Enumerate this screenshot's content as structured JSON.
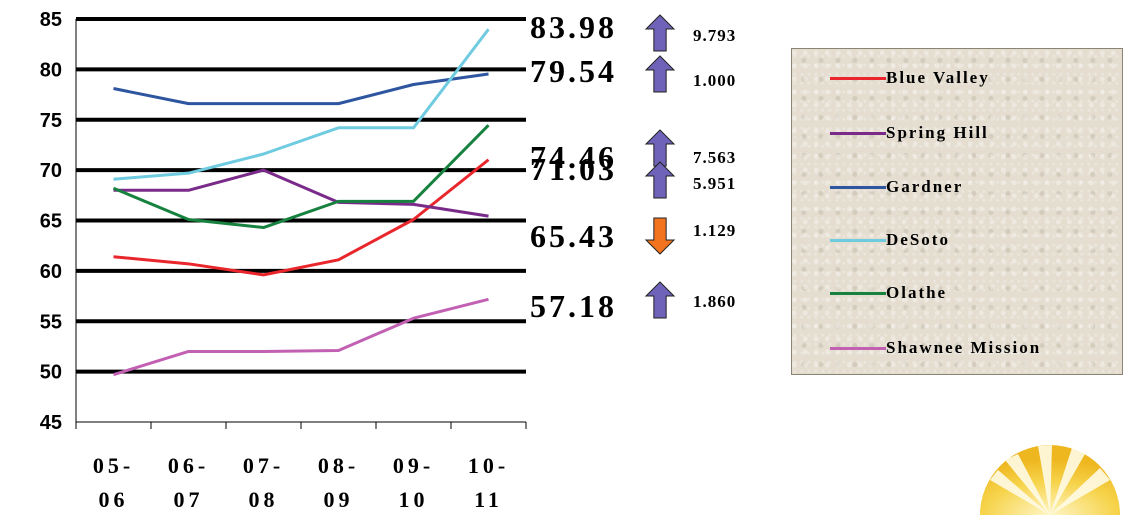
{
  "chart_data": {
    "type": "line",
    "categories": [
      [
        "05-",
        "06"
      ],
      [
        "06-",
        "07"
      ],
      [
        "07-",
        "08"
      ],
      [
        "08-",
        "09"
      ],
      [
        "09-",
        "10"
      ],
      [
        "10-",
        "11"
      ]
    ],
    "ylim": [
      45,
      85
    ],
    "yticks": [
      45,
      50,
      55,
      60,
      65,
      70,
      75,
      80,
      85
    ],
    "grid": true,
    "legend_position": "right",
    "series": [
      {
        "name": "Blue Valley",
        "color": "#e8262b",
        "values": [
          61.4,
          60.7,
          59.6,
          61.1,
          65.1,
          71.03
        ]
      },
      {
        "name": "Spring Hill",
        "color": "#7a2b8a",
        "values": [
          68.0,
          68.0,
          70.0,
          66.8,
          66.6,
          65.43
        ]
      },
      {
        "name": "Gardner",
        "color": "#2e55a0",
        "values": [
          78.1,
          76.6,
          76.6,
          76.6,
          78.5,
          79.54
        ]
      },
      {
        "name": "DeSoto",
        "color": "#6fcbe0",
        "values": [
          69.1,
          69.7,
          71.6,
          74.2,
          74.2,
          83.98
        ]
      },
      {
        "name": "Olathe",
        "color": "#17813f",
        "values": [
          68.2,
          65.1,
          64.3,
          66.9,
          66.9,
          74.46
        ]
      },
      {
        "name": "Shawnee Mission",
        "color": "#c261b3",
        "values": [
          49.7,
          52.0,
          52.0,
          52.1,
          55.3,
          57.18
        ]
      }
    ],
    "annotations": [
      {
        "value": "83.98",
        "change": "9.793",
        "direction": "up",
        "at": 83.98
      },
      {
        "value": "79.54",
        "change": "1.000",
        "direction": "up",
        "at": 79.54
      },
      {
        "value": "74.46",
        "change": "7.563",
        "direction": "up",
        "at": 74.46
      },
      {
        "value": "71.03",
        "change": "5.951",
        "direction": "up",
        "at": 71.03
      },
      {
        "value": "65.43",
        "change": "1.129",
        "direction": "down",
        "at": 65.43
      },
      {
        "value": "57.18",
        "change": "1.860",
        "direction": "up",
        "at": 57.18
      }
    ]
  },
  "colors": {
    "up_arrow": "#6e63b8",
    "down_arrow": "#f2741f",
    "legend_bg": "#e4ddd0"
  },
  "icons": {
    "up": "arrow-up-icon",
    "down": "arrow-down-icon",
    "logo": "sun-logo-icon"
  }
}
